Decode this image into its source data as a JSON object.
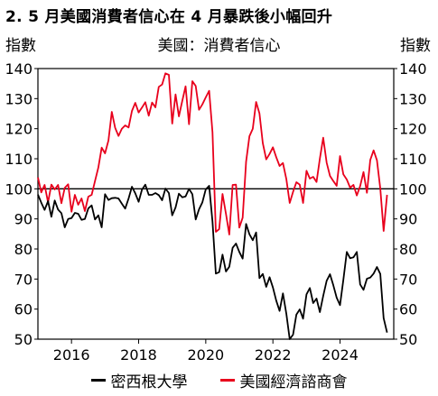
{
  "chart_data": {
    "type": "line",
    "title": "2. 5 月美國消費者信心在 4 月暴跌後小幅回升",
    "subtitle": "美國：消費者信心",
    "ylabel_left": "指數",
    "ylabel_right": "指數",
    "ylim_left": [
      50,
      140
    ],
    "ylim_right": [
      50,
      140
    ],
    "y_ticks": [
      50,
      60,
      70,
      80,
      90,
      100,
      110,
      120,
      130,
      140
    ],
    "xlim": [
      2015.0,
      2025.6
    ],
    "x_ticks": [
      2016,
      2018,
      2020,
      2022,
      2024
    ],
    "reference_line": 100,
    "series": [
      {
        "name": "密西根大學",
        "color": "#000000",
        "x": [
          2015.0,
          2015.1,
          2015.2,
          2015.3,
          2015.4,
          2015.5,
          2015.6,
          2015.7,
          2015.8,
          2015.9,
          2016.0,
          2016.1,
          2016.2,
          2016.3,
          2016.4,
          2016.5,
          2016.6,
          2016.7,
          2016.8,
          2016.9,
          2017.0,
          2017.1,
          2017.2,
          2017.3,
          2017.4,
          2017.5,
          2017.6,
          2017.7,
          2017.8,
          2017.9,
          2018.0,
          2018.1,
          2018.2,
          2018.3,
          2018.4,
          2018.5,
          2018.6,
          2018.7,
          2018.8,
          2018.9,
          2019.0,
          2019.1,
          2019.2,
          2019.3,
          2019.4,
          2019.5,
          2019.6,
          2019.7,
          2019.8,
          2019.9,
          2020.0,
          2020.1,
          2020.2,
          2020.3,
          2020.4,
          2020.5,
          2020.6,
          2020.7,
          2020.8,
          2020.9,
          2021.0,
          2021.1,
          2021.2,
          2021.3,
          2021.4,
          2021.5,
          2021.6,
          2021.7,
          2021.8,
          2021.9,
          2022.0,
          2022.1,
          2022.2,
          2022.3,
          2022.4,
          2022.5,
          2022.6,
          2022.7,
          2022.8,
          2022.9,
          2023.0,
          2023.1,
          2023.2,
          2023.3,
          2023.4,
          2023.5,
          2023.6,
          2023.7,
          2023.8,
          2023.9,
          2024.0,
          2024.1,
          2024.2,
          2024.3,
          2024.4,
          2024.5,
          2024.6,
          2024.7,
          2024.8,
          2024.9,
          2025.0,
          2025.1,
          2025.2,
          2025.3,
          2025.4
        ],
        "values": [
          98.1,
          95.4,
          93.0,
          95.9,
          90.7,
          96.1,
          93.1,
          91.9,
          87.2,
          90.0,
          90.3,
          92.0,
          91.7,
          89.7,
          90.0,
          93.5,
          94.5,
          89.8,
          91.2,
          87.2,
          98.2,
          96.3,
          96.9,
          97.0,
          96.8,
          95.1,
          93.4,
          96.8,
          100.7,
          98.5,
          95.7,
          99.7,
          101.4,
          98.0,
          98.0,
          98.6,
          97.9,
          96.2,
          100.1,
          98.6,
          91.2,
          93.8,
          98.4,
          97.2,
          97.5,
          100.0,
          98.2,
          89.8,
          93.2,
          95.5,
          99.8,
          101.0,
          89.1,
          71.8,
          72.3,
          78.1,
          72.5,
          74.1,
          80.4,
          81.8,
          79.0,
          76.8,
          88.3,
          84.9,
          82.9,
          85.5,
          70.3,
          71.7,
          67.4,
          70.6,
          67.2,
          62.8,
          59.4,
          65.2,
          58.4,
          50.0,
          51.5,
          58.2,
          59.9,
          56.8,
          64.9,
          67.0,
          62.0,
          63.5,
          59.0,
          64.4,
          69.4,
          71.6,
          67.9,
          63.8,
          61.3,
          69.7,
          79.0,
          76.9,
          77.2,
          79.0,
          68.2,
          66.4,
          70.1,
          70.5,
          71.8,
          74.0,
          71.7,
          57.0,
          52.2
        ]
      },
      {
        "name": "美國經濟諮商會",
        "color": "#e8001c",
        "x": [
          2015.0,
          2015.1,
          2015.2,
          2015.3,
          2015.4,
          2015.5,
          2015.6,
          2015.7,
          2015.8,
          2015.9,
          2016.0,
          2016.1,
          2016.2,
          2016.3,
          2016.4,
          2016.5,
          2016.6,
          2016.7,
          2016.8,
          2016.9,
          2017.0,
          2017.1,
          2017.2,
          2017.3,
          2017.4,
          2017.5,
          2017.6,
          2017.7,
          2017.8,
          2017.9,
          2018.0,
          2018.1,
          2018.2,
          2018.3,
          2018.4,
          2018.5,
          2018.6,
          2018.7,
          2018.8,
          2018.9,
          2019.0,
          2019.1,
          2019.2,
          2019.3,
          2019.4,
          2019.5,
          2019.6,
          2019.7,
          2019.8,
          2019.9,
          2020.0,
          2020.1,
          2020.2,
          2020.3,
          2020.4,
          2020.5,
          2020.6,
          2020.7,
          2020.8,
          2020.9,
          2021.0,
          2021.1,
          2021.2,
          2021.3,
          2021.4,
          2021.5,
          2021.6,
          2021.7,
          2021.8,
          2021.9,
          2022.0,
          2022.1,
          2022.2,
          2022.3,
          2022.4,
          2022.5,
          2022.6,
          2022.7,
          2022.8,
          2022.9,
          2023.0,
          2023.1,
          2023.2,
          2023.3,
          2023.4,
          2023.5,
          2023.6,
          2023.7,
          2023.8,
          2023.9,
          2024.0,
          2024.1,
          2024.2,
          2024.3,
          2024.4,
          2024.5,
          2024.6,
          2024.7,
          2024.8,
          2024.9,
          2025.0,
          2025.1,
          2025.2,
          2025.3,
          2025.4
        ],
        "values": [
          103.8,
          98.8,
          101.3,
          95.5,
          101.4,
          99.8,
          101.3,
          95.2,
          100.3,
          101.5,
          92.4,
          98.0,
          94.7,
          96.8,
          92.6,
          97.4,
          98.0,
          102.6,
          107.1,
          113.7,
          111.8,
          116.1,
          125.6,
          120.3,
          117.6,
          120.0,
          121.1,
          120.4,
          125.9,
          128.6,
          125.4,
          127.0,
          128.8,
          124.3,
          128.7,
          127.1,
          133.9,
          134.7,
          138.4,
          137.9,
          121.7,
          131.4,
          124.1,
          129.2,
          134.1,
          121.5,
          135.8,
          134.2,
          126.3,
          128.1,
          130.4,
          132.6,
          118.8,
          85.7,
          86.6,
          98.3,
          91.7,
          84.8,
          101.3,
          101.4,
          87.1,
          90.4,
          109.0,
          117.5,
          120.0,
          128.9,
          125.1,
          115.2,
          109.8,
          111.6,
          113.8,
          110.5,
          107.6,
          108.6,
          103.2,
          95.3,
          99.0,
          102.2,
          101.4,
          95.3,
          106.0,
          103.4,
          104.0,
          102.3,
          110.1,
          117.0,
          108.7,
          104.3,
          102.6,
          101.0,
          110.9,
          104.8,
          103.1,
          100.4,
          101.3,
          97.8,
          100.9,
          105.6,
          98.7,
          109.6,
          112.8,
          109.5,
          100.1,
          86.0,
          98.0
        ]
      }
    ],
    "legend": "bottom-center"
  }
}
